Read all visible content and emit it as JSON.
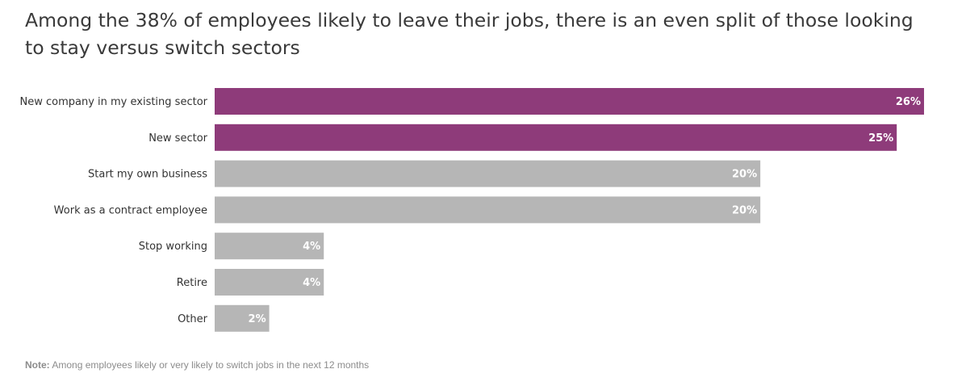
{
  "chart_data": {
    "type": "bar",
    "orientation": "horizontal",
    "title": "Among the 38% of employees likely to leave their jobs, there is an even split of those looking to stay versus switch sectors",
    "categories": [
      "New company in my existing sector",
      "New sector",
      "Start my own business",
      "Work as a contract employee",
      "Stop working",
      "Retire",
      "Other"
    ],
    "values": [
      26,
      25,
      20,
      20,
      4,
      4,
      2
    ],
    "value_labels": [
      "26%",
      "25%",
      "20%",
      "20%",
      "4%",
      "4%",
      "2%"
    ],
    "highlight_count": 2,
    "colors": {
      "highlight": "#8e3b7a",
      "default": "#b6b6b6",
      "value_label": "#ffffff",
      "title": "#3a3a3a",
      "category_label": "#333333",
      "note": "#8c8c8c"
    },
    "xlim": [
      0,
      26
    ],
    "grid": false,
    "legend": "none",
    "note_prefix": "Note:",
    "note_text": " Among employees likely or very likely to switch jobs in the next 12 months"
  }
}
